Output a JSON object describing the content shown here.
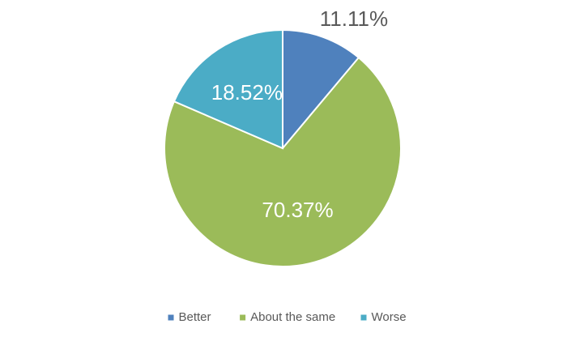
{
  "chart_data": {
    "type": "pie",
    "categories": [
      "Better",
      "About the same",
      "Worse"
    ],
    "values": [
      11.11,
      70.37,
      18.52
    ],
    "value_labels": [
      "11.11%",
      "70.37%",
      "18.52%"
    ],
    "colors": [
      "#4f81bd",
      "#9bbb59",
      "#4bacc6"
    ],
    "legend": "bottom"
  }
}
